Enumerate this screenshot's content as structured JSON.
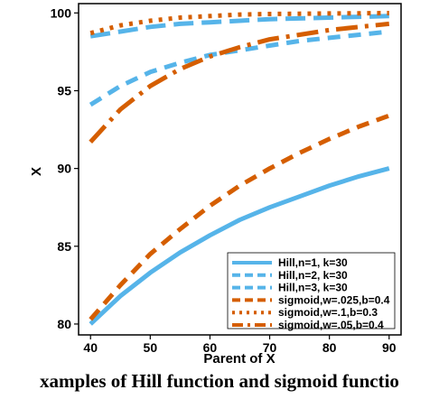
{
  "caption": "xamples of Hill function and sigmoid functio",
  "colors": {
    "blue": "#56B4E9",
    "orange": "#D55E00"
  },
  "chart_data": {
    "type": "line",
    "title": "",
    "xlabel": "Parent of X",
    "ylabel": "X",
    "xlim": [
      38,
      92
    ],
    "ylim": [
      79.3,
      100.6
    ],
    "xticks": [
      40,
      50,
      60,
      70,
      80,
      90
    ],
    "yticks": [
      80,
      85,
      90,
      95,
      100
    ],
    "grid": false,
    "legend_position": "bottom-right",
    "series": [
      {
        "name": "Hill,n=1, k=30",
        "color": "#56B4E9",
        "style": "solid",
        "x": [
          40,
          45,
          50,
          55,
          60,
          65,
          70,
          75,
          80,
          85,
          90
        ],
        "y": [
          80.0,
          81.8,
          83.3,
          84.6,
          85.7,
          86.7,
          87.5,
          88.2,
          88.9,
          89.5,
          90.0
        ]
      },
      {
        "name": "Hill,n=2, k=30",
        "color": "#56B4E9",
        "style": "dash",
        "x": [
          40,
          45,
          50,
          55,
          60,
          65,
          70,
          75,
          80,
          85,
          90
        ],
        "y": [
          94.1,
          95.3,
          96.2,
          96.8,
          97.3,
          97.6,
          97.9,
          98.2,
          98.4,
          98.6,
          98.8
        ]
      },
      {
        "name": "Hill,n=3, k=30",
        "color": "#56B4E9",
        "style": "longdash",
        "x": [
          40,
          45,
          50,
          55,
          60,
          65,
          70,
          75,
          80,
          85,
          90
        ],
        "y": [
          98.5,
          98.8,
          99.1,
          99.3,
          99.4,
          99.5,
          99.6,
          99.65,
          99.7,
          99.75,
          99.8
        ]
      },
      {
        "name": "sigmoid,w=.025,b=0.4",
        "color": "#D55E00",
        "style": "dash",
        "x": [
          40,
          45,
          50,
          55,
          60,
          65,
          70,
          75,
          80,
          85,
          90
        ],
        "y": [
          80.3,
          82.5,
          84.5,
          86.1,
          87.6,
          88.9,
          90.0,
          91.0,
          91.9,
          92.7,
          93.4
        ]
      },
      {
        "name": "sigmoid,w=.1,b=0.3",
        "color": "#D55E00",
        "style": "dot",
        "x": [
          40,
          45,
          50,
          55,
          60,
          65,
          70,
          75,
          80,
          85,
          90
        ],
        "y": [
          98.7,
          99.2,
          99.5,
          99.7,
          99.8,
          99.9,
          99.93,
          99.95,
          99.97,
          99.98,
          99.99
        ]
      },
      {
        "name": "sigmoid,w=.05,b=0.4",
        "color": "#D55E00",
        "style": "dashdot",
        "x": [
          40,
          45,
          50,
          55,
          60,
          65,
          70,
          75,
          80,
          85,
          90
        ],
        "y": [
          91.7,
          93.8,
          95.3,
          96.4,
          97.2,
          97.8,
          98.3,
          98.6,
          98.9,
          99.1,
          99.3
        ]
      }
    ]
  }
}
